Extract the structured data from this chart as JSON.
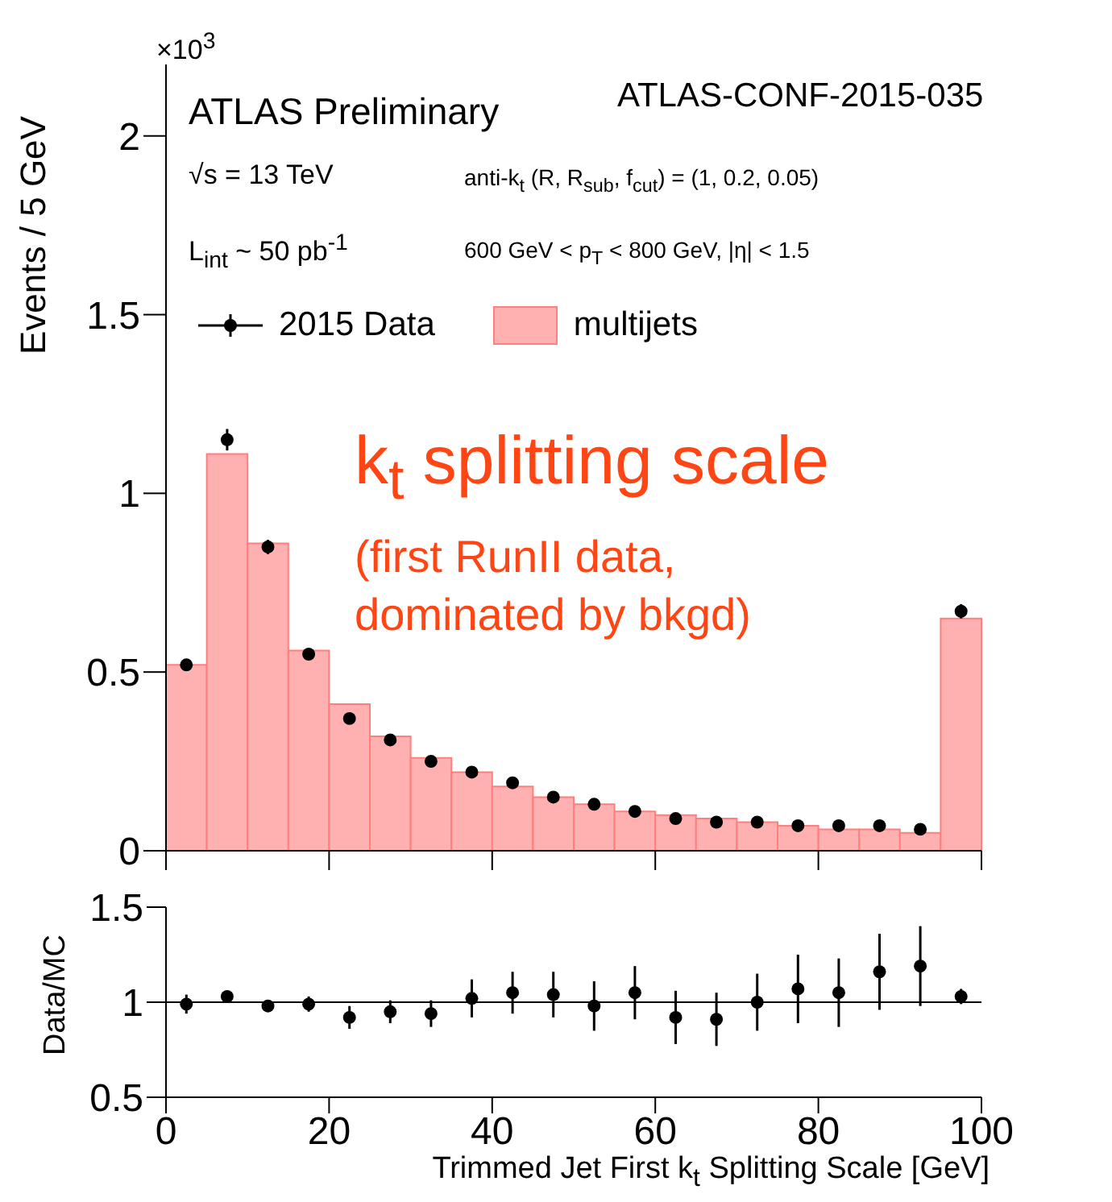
{
  "chart_data": [
    {
      "type": "histogram",
      "ylabel": "Events / 5 GeV",
      "bins": [
        0,
        5,
        10,
        15,
        20,
        25,
        30,
        35,
        40,
        45,
        50,
        55,
        60,
        65,
        70,
        75,
        80,
        85,
        90,
        95,
        100
      ],
      "series": [
        {
          "name": "2015 Data",
          "type": "scatter",
          "color": "#000000",
          "x": [
            2.5,
            7.5,
            12.5,
            17.5,
            22.5,
            27.5,
            32.5,
            37.5,
            42.5,
            47.5,
            52.5,
            57.5,
            62.5,
            67.5,
            72.5,
            77.5,
            82.5,
            87.5,
            92.5,
            97.5
          ],
          "values": [
            0.52,
            1.15,
            0.85,
            0.55,
            0.37,
            0.31,
            0.25,
            0.22,
            0.19,
            0.15,
            0.13,
            0.11,
            0.09,
            0.08,
            0.08,
            0.07,
            0.07,
            0.07,
            0.06,
            0.67
          ],
          "errors": [
            null,
            0.03,
            0.02,
            null,
            null,
            null,
            null,
            null,
            null,
            null,
            null,
            null,
            null,
            null,
            null,
            null,
            null,
            null,
            null,
            0.02
          ]
        },
        {
          "name": "multijets",
          "type": "histogram",
          "color": "#ffb0b0",
          "values": [
            0.52,
            1.11,
            0.86,
            0.56,
            0.41,
            0.32,
            0.26,
            0.22,
            0.18,
            0.15,
            0.13,
            0.11,
            0.1,
            0.09,
            0.08,
            0.07,
            0.06,
            0.06,
            0.05,
            0.65
          ]
        }
      ],
      "xlim": [
        0,
        100
      ],
      "xticks": [
        0,
        20,
        40,
        60,
        80,
        100
      ],
      "ylim": [
        0,
        2.2
      ],
      "yticks": [
        0,
        0.5,
        1,
        1.5,
        2
      ],
      "tick_labels": "y",
      "legend": "top left",
      "marker": "circle",
      "annotations": [
        "×10$^{3}$",
        "ATLAS Preliminary",
        "ATLAS-CONF-2015-035",
        "√s = 13 TeV",
        "L$_{int}$ ~ 50 pb$^{-1}$",
        "anti-k$_{t}$ (R, R$_{sub}$, f$_{cut}$) = (1, 0.2, 0.05)",
        "600 GeV < p$_{T}$ < 800 GeV, |η| < 1.5",
        "k$_{t}$ splitting scale",
        "(first RunII data,",
        "dominated by bkgd)"
      ]
    },
    {
      "type": "scatter",
      "xlabel": "Trimmed Jet First k$_{t}$ Splitting Scale [GeV]",
      "ylabel": "Data/MC",
      "color": "#000000",
      "x": [
        2.5,
        7.5,
        12.5,
        17.5,
        22.5,
        27.5,
        32.5,
        37.5,
        42.5,
        47.5,
        52.5,
        57.5,
        62.5,
        67.5,
        72.5,
        77.5,
        82.5,
        87.5,
        92.5,
        97.5
      ],
      "values": [
        0.99,
        1.03,
        0.98,
        0.99,
        0.92,
        0.95,
        0.94,
        1.02,
        1.05,
        1.04,
        0.98,
        1.05,
        0.92,
        0.91,
        1.0,
        1.07,
        1.05,
        1.16,
        1.19,
        1.03
      ],
      "errors": [
        0.05,
        0.03,
        0.03,
        0.04,
        0.06,
        0.06,
        0.07,
        0.1,
        0.11,
        0.12,
        0.13,
        0.14,
        0.14,
        0.14,
        0.15,
        0.18,
        0.18,
        0.2,
        0.21,
        0.04
      ],
      "xlim": [
        0,
        100
      ],
      "xticks": [
        0,
        20,
        40,
        60,
        80,
        100
      ],
      "ylim": [
        0.5,
        1.5
      ],
      "yticks": [
        0.5,
        1,
        1.5
      ],
      "ref_lines": [
        {
          "axis": "y",
          "value": 1,
          "color": "#000000"
        }
      ],
      "marker": "circle"
    }
  ]
}
